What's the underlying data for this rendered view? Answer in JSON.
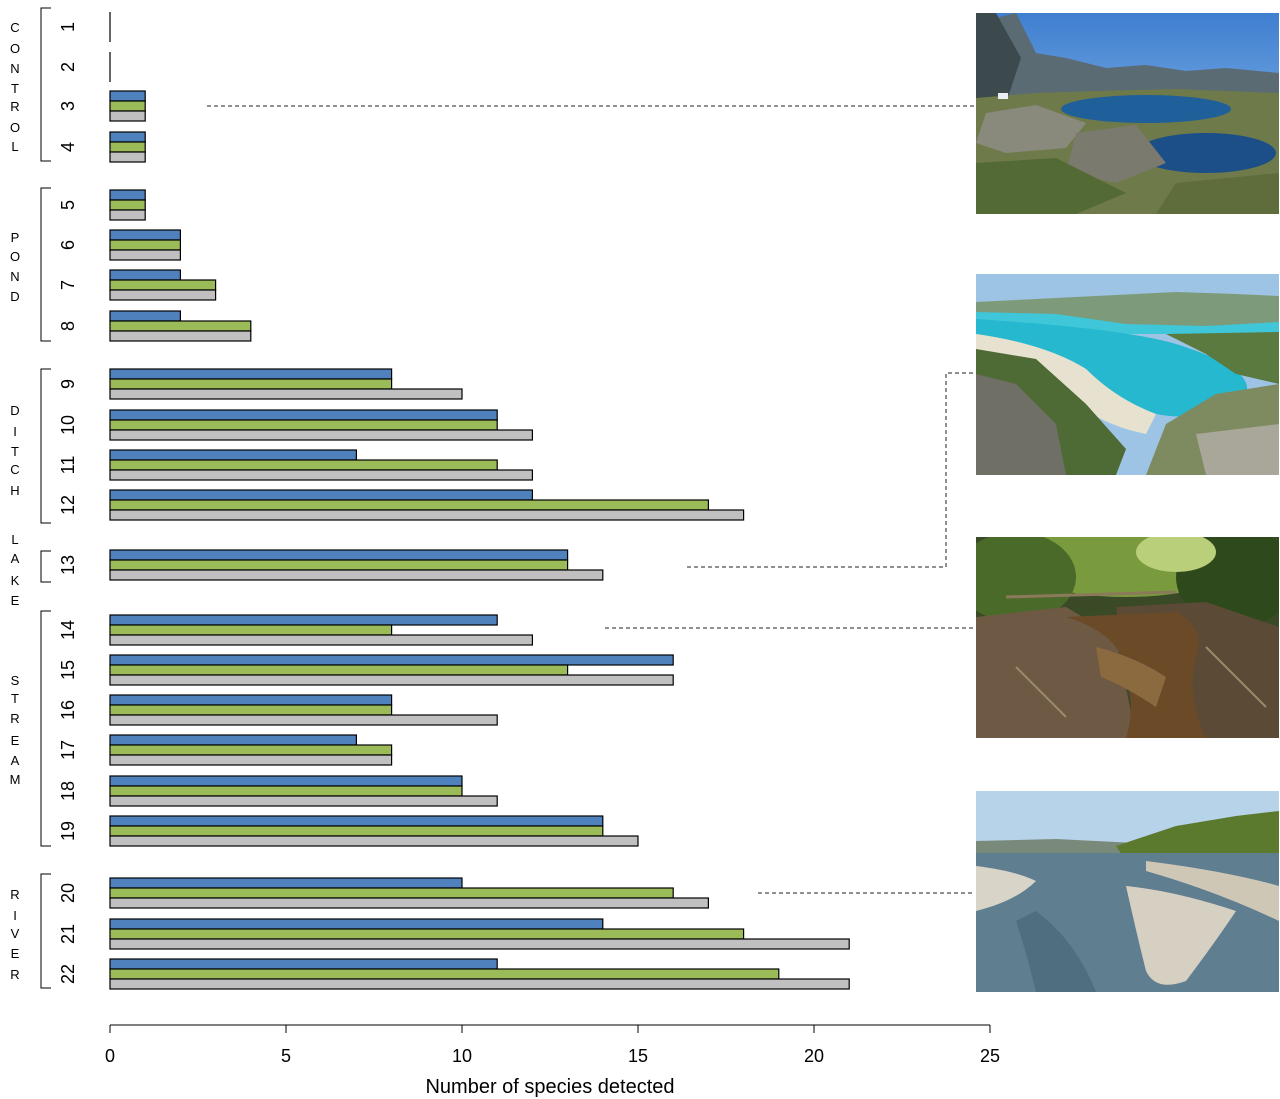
{
  "chart_data": {
    "type": "bar",
    "orientation": "horizontal",
    "xlabel": "Number of species detected",
    "xlim": [
      0,
      25
    ],
    "xticks": [
      0,
      5,
      10,
      15,
      20,
      25
    ],
    "grid": false,
    "colors": {
      "blue": "#4f81bd",
      "green": "#9bbb59",
      "grey": "#c0c0c0"
    },
    "groups": [
      {
        "label": "CONTROL",
        "sites": [
          "1",
          "2",
          "3",
          "4"
        ]
      },
      {
        "label": "POND",
        "sites": [
          "5",
          "6",
          "7",
          "8"
        ]
      },
      {
        "label": "DITCH",
        "sites": [
          "9",
          "10",
          "11",
          "12"
        ]
      },
      {
        "label": "LAKE",
        "sites": [
          "13"
        ]
      },
      {
        "label": "STREAM",
        "sites": [
          "14",
          "15",
          "16",
          "17",
          "18",
          "19"
        ]
      },
      {
        "label": "RIVER",
        "sites": [
          "20",
          "21",
          "22"
        ]
      }
    ],
    "categories": [
      "1",
      "2",
      "3",
      "4",
      "5",
      "6",
      "7",
      "8",
      "9",
      "10",
      "11",
      "12",
      "13",
      "14",
      "15",
      "16",
      "17",
      "18",
      "19",
      "20",
      "21",
      "22"
    ],
    "series": [
      {
        "color": "#4f81bd",
        "values": [
          0,
          0,
          1,
          1,
          1,
          2,
          2,
          2,
          8,
          11,
          7,
          12,
          13,
          11,
          16,
          8,
          7,
          10,
          14,
          10,
          14,
          11
        ]
      },
      {
        "color": "#9bbb59",
        "values": [
          0,
          0,
          1,
          1,
          1,
          2,
          3,
          4,
          8,
          11,
          11,
          17,
          13,
          8,
          13,
          8,
          8,
          10,
          14,
          16,
          18,
          19
        ]
      },
      {
        "color": "#c0c0c0",
        "values": [
          0,
          0,
          1,
          1,
          1,
          2,
          3,
          4,
          10,
          12,
          12,
          18,
          14,
          12,
          16,
          11,
          8,
          11,
          15,
          17,
          21,
          21
        ]
      }
    ]
  },
  "photos": [
    {
      "name": "mountain-lake-photo",
      "site": "3"
    },
    {
      "name": "large-lake-photo",
      "site": "13"
    },
    {
      "name": "forest-stream-photo",
      "site": "14"
    },
    {
      "name": "river-photo",
      "site": "20"
    }
  ]
}
